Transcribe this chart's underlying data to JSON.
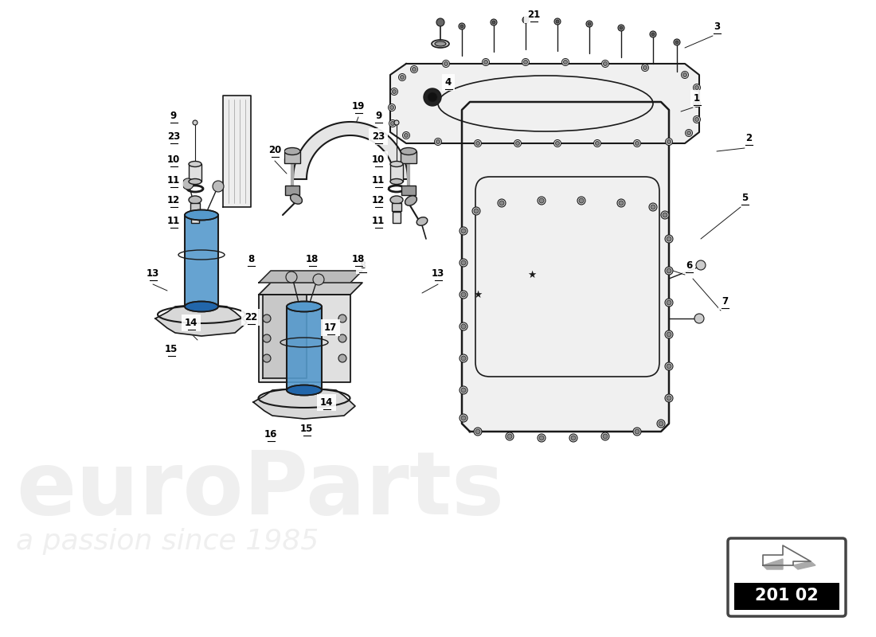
{
  "bg_color": "#ffffff",
  "line_color": "#1a1a1a",
  "blue_color": "#5599cc",
  "watermark_color": "#cccccc",
  "page_code": "201 02",
  "watermark_text1": "euroParts",
  "watermark_text2": "a passion since 1985"
}
